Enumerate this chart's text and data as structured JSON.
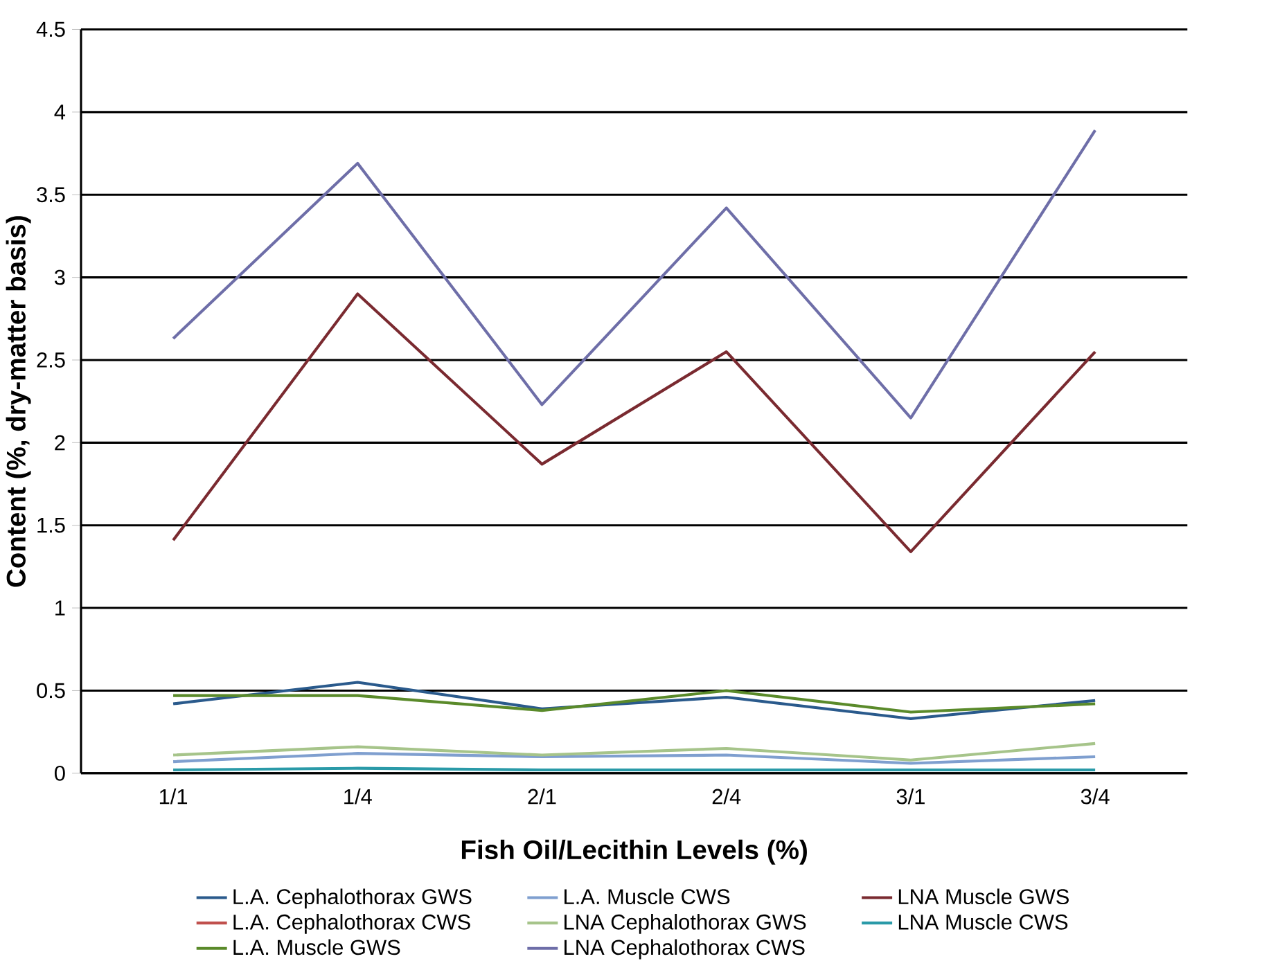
{
  "chart_data": {
    "type": "line",
    "xlabel": "Fish Oil/Lecithin Levels (%)",
    "ylabel": "Content (%, dry-matter basis)",
    "categories": [
      "1/1",
      "1/4",
      "2/1",
      "2/4",
      "3/1",
      "3/4"
    ],
    "series": [
      {
        "name": "L.A. Cephalothorax GWS",
        "color": "#2a5a8c",
        "values": [
          0.42,
          0.55,
          0.39,
          0.46,
          0.33,
          0.44
        ]
      },
      {
        "name": "L.A. Cephalothorax CWS",
        "color": "#c0504d",
        "values": [
          null,
          null,
          null,
          null,
          null,
          null
        ]
      },
      {
        "name": "L.A. Muscle GWS",
        "color": "#5a8a2a",
        "values": [
          0.47,
          0.47,
          0.38,
          0.5,
          0.37,
          0.42
        ]
      },
      {
        "name": "L.A. Muscle CWS",
        "color": "#7f9fcf",
        "values": [
          0.07,
          0.12,
          0.1,
          0.11,
          0.06,
          0.1
        ]
      },
      {
        "name": "LNA Cephalothorax GWS",
        "color": "#a6c48a",
        "values": [
          0.11,
          0.16,
          0.11,
          0.15,
          0.08,
          0.18
        ]
      },
      {
        "name": "LNA Cephalothorax CWS",
        "color": "#6e6ea8",
        "values": [
          2.63,
          3.69,
          2.23,
          3.42,
          2.15,
          3.89
        ]
      },
      {
        "name": "LNA Muscle GWS",
        "color": "#7a2a30",
        "values": [
          1.41,
          2.9,
          1.87,
          2.55,
          1.34,
          2.55
        ]
      },
      {
        "name": "LNA Muscle CWS",
        "color": "#2a9aa8",
        "values": [
          0.02,
          0.03,
          0.02,
          0.02,
          0.02,
          0.02
        ]
      }
    ],
    "ylim": [
      0,
      4.5
    ],
    "yticks": [
      0,
      0.5,
      1,
      1.5,
      2,
      2.5,
      3,
      3.5,
      4,
      4.5
    ],
    "grid": "y",
    "legend": "bottom"
  }
}
